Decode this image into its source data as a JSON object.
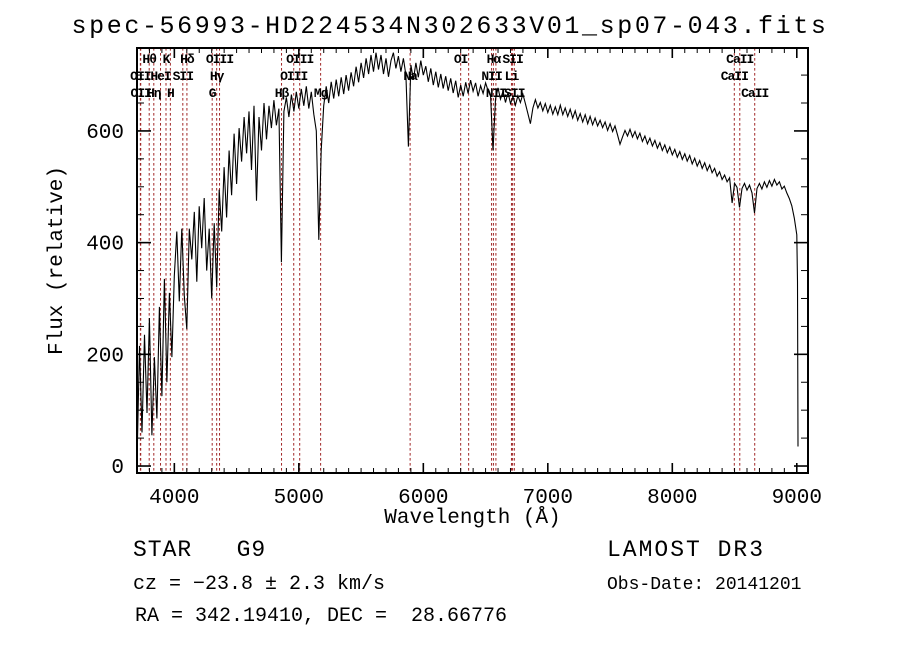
{
  "title": "spec-56993-HD224534N302633V01_sp07-043.fits",
  "annotations": {
    "class_line": "STAR   G9",
    "cz_line": "cz = −23.8 ± 2.3 km/s",
    "radec_line": "RA = 342.19410, DEC =  28.66776",
    "survey": "LAMOST DR3",
    "obs_date": "Obs-Date: 20141201"
  },
  "chart_data": {
    "type": "line",
    "title": "spec-56993-HD224534N302633V01_sp07-043.fits",
    "xlabel": "Wavelength (Å)",
    "ylabel": "Flux (relative)",
    "xlim": [
      3700,
      9090
    ],
    "ylim": [
      -12.5,
      748.5
    ],
    "x_ticks": [
      4000,
      5000,
      6000,
      7000,
      8000,
      9000
    ],
    "y_ticks": [
      0,
      200,
      400,
      600
    ],
    "x_minor_step": 100,
    "y_minor_step": 50,
    "grid": false,
    "line_color": "#000000",
    "marker_line_color": "#a12828",
    "spectral_lines": [
      {
        "label": "OII",
        "wavelength": 3727,
        "row": 2
      },
      {
        "label": "OII",
        "wavelength": 3730,
        "row": 3
      },
      {
        "label": "Hθ",
        "wavelength": 3798,
        "row": 1
      },
      {
        "label": "Hη",
        "wavelength": 3835,
        "row": 3
      },
      {
        "label": "HeI",
        "wavelength": 3889,
        "row": 2
      },
      {
        "label": "K",
        "wavelength": 3933,
        "row": 1
      },
      {
        "label": "H",
        "wavelength": 3968,
        "row": 3
      },
      {
        "label": "SII",
        "wavelength": 4068,
        "row": 2
      },
      {
        "label": "Hδ",
        "wavelength": 4101,
        "row": 1
      },
      {
        "label": "G",
        "wavelength": 4304,
        "row": 3
      },
      {
        "label": "Hγ",
        "wavelength": 4340,
        "row": 2
      },
      {
        "label": "OIII",
        "wavelength": 4363,
        "row": 1
      },
      {
        "label": "Hβ",
        "wavelength": 4861,
        "row": 3
      },
      {
        "label": "OIII",
        "wavelength": 4959,
        "row": 2
      },
      {
        "label": "OIII",
        "wavelength": 5007,
        "row": 1
      },
      {
        "label": "Mg",
        "wavelength": 5175,
        "row": 3
      },
      {
        "label": "Na",
        "wavelength": 5894,
        "row": 2
      },
      {
        "label": "OI",
        "wavelength": 6300,
        "row": 1
      },
      {
        "label": "",
        "wavelength": 6364,
        "row": 0
      },
      {
        "label": "NII",
        "wavelength": 6548,
        "row": 2
      },
      {
        "label": "Hα",
        "wavelength": 6563,
        "row": 1
      },
      {
        "label": "NII",
        "wavelength": 6583,
        "row": 3
      },
      {
        "label": "Li",
        "wavelength": 6708,
        "row": 2
      },
      {
        "label": "SII",
        "wavelength": 6717,
        "row": 1
      },
      {
        "label": "SII",
        "wavelength": 6731,
        "row": 3
      },
      {
        "label": "CaII",
        "wavelength": 8498,
        "row": 2
      },
      {
        "label": "CaII",
        "wavelength": 8542,
        "row": 1
      },
      {
        "label": "CaII",
        "wavelength": 8662,
        "row": 3
      }
    ],
    "spectrum": {
      "x_start": 3700,
      "x_step": 20,
      "flux": [
        5,
        215,
        60,
        235,
        95,
        265,
        55,
        195,
        85,
        285,
        125,
        335,
        150,
        310,
        195,
        340,
        420,
        295,
        425,
        305,
        245,
        425,
        370,
        455,
        330,
        465,
        390,
        480,
        350,
        425,
        300,
        435,
        320,
        495,
        420,
        535,
        445,
        565,
        485,
        595,
        505,
        605,
        545,
        625,
        560,
        635,
        530,
        645,
        475,
        625,
        565,
        650,
        585,
        645,
        605,
        655,
        610,
        640,
        365,
        635,
        660,
        625,
        665,
        635,
        670,
        640,
        675,
        645,
        680,
        640,
        670,
        630,
        600,
        405,
        565,
        645,
        680,
        650,
        688,
        658,
        692,
        662,
        696,
        666,
        700,
        672,
        705,
        680,
        715,
        687,
        722,
        695,
        730,
        702,
        736,
        706,
        740,
        710,
        736,
        702,
        730,
        697,
        726,
        740,
        712,
        734,
        706,
        730,
        700,
        572,
        718,
        692,
        722,
        696,
        726,
        700,
        716,
        688,
        712,
        682,
        706,
        678,
        702,
        676,
        698,
        672,
        694,
        668,
        690,
        660,
        682,
        662,
        687,
        667,
        691,
        671,
        686,
        662,
        681,
        667,
        686,
        672,
        662,
        565,
        657,
        677,
        657,
        671,
        651,
        669,
        649,
        661,
        646,
        663,
        651,
        666,
        649,
        631,
        613,
        641,
        656,
        641,
        651,
        636,
        649,
        633,
        646,
        630,
        643,
        629,
        646,
        629,
        641,
        626,
        639,
        623,
        636,
        619,
        631,
        616,
        629,
        613,
        626,
        611,
        623,
        609,
        619,
        606,
        616,
        601,
        613,
        599,
        609,
        593,
        576,
        589,
        601,
        591,
        603,
        589,
        599,
        586,
        596,
        581,
        591,
        577,
        587,
        573,
        583,
        569,
        579,
        565,
        575,
        561,
        571,
        557,
        567,
        553,
        563,
        549,
        559,
        546,
        556,
        541,
        551,
        537,
        547,
        533,
        543,
        529,
        539,
        525,
        533,
        519,
        527,
        513,
        521,
        509,
        516,
        471,
        506,
        499,
        463,
        497,
        506,
        494,
        503,
        489,
        453,
        497,
        506,
        496,
        509,
        499,
        511,
        501,
        513,
        503,
        509,
        496,
        501,
        489,
        479,
        466,
        444,
        414
      ],
      "tail_points": [
        [
          9006,
          330
        ],
        [
          9010,
          35
        ]
      ]
    }
  }
}
